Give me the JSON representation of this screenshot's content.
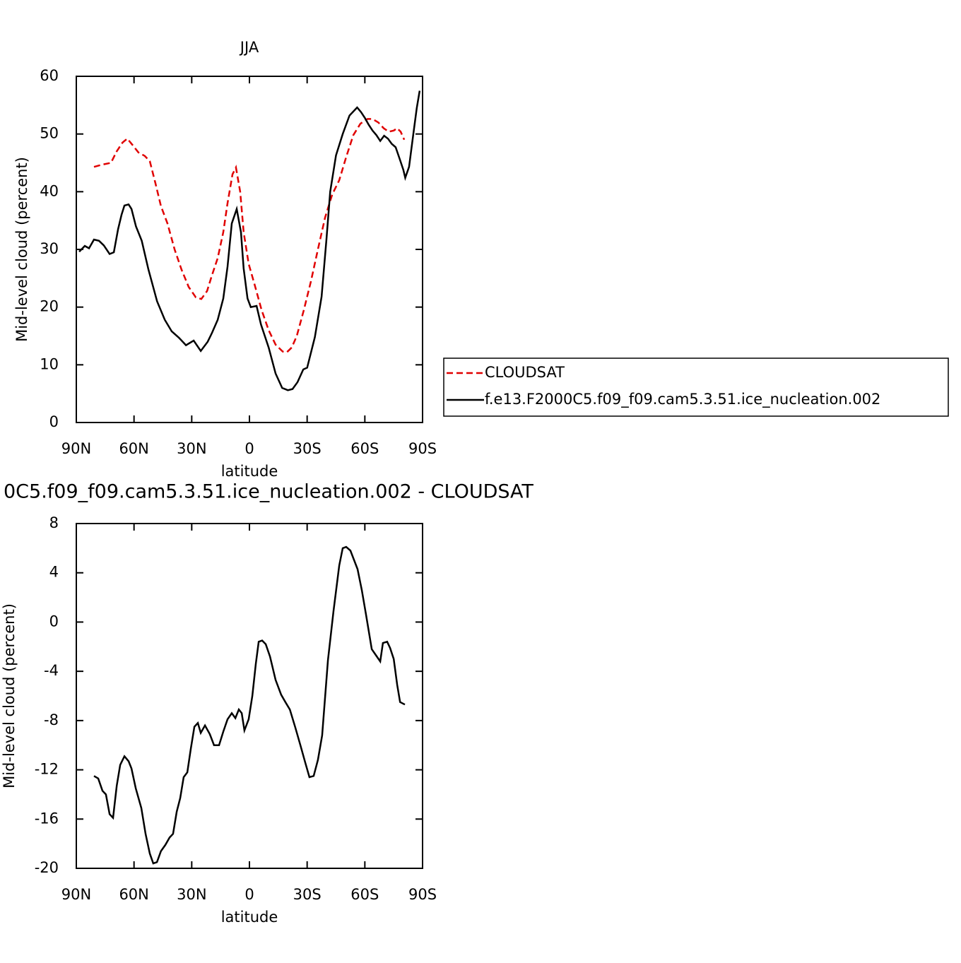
{
  "chart_data": [
    {
      "type": "line",
      "title": "JJA",
      "xlabel": "latitude",
      "ylabel": "Mid-level cloud (percent)",
      "xlim": [
        90,
        -90
      ],
      "xticks": [
        {
          "value": 90,
          "label": "90N"
        },
        {
          "value": 60,
          "label": "60N"
        },
        {
          "value": 30,
          "label": "30N"
        },
        0,
        {
          "value": -30,
          "label": "30S"
        },
        {
          "value": -60,
          "label": "60S"
        },
        {
          "value": -90,
          "label": "90S"
        }
      ],
      "ylim": [
        0,
        60
      ],
      "yticks": [
        0,
        10,
        20,
        30,
        40,
        50,
        60
      ],
      "legend": "right",
      "series": [
        {
          "name": "CLOUDSAT",
          "color": "#e00000",
          "line_style": "dashed",
          "x": [
            80.8,
            76.4,
            72,
            69,
            66,
            63.5,
            61,
            57.7,
            54.4,
            51.8,
            48.9,
            46,
            42.6,
            38.9,
            35.3,
            31.6,
            27.9,
            25,
            22,
            19.5,
            16.5,
            13.6,
            11.4,
            8.8,
            7,
            4.8,
            3,
            0.4,
            -2.6,
            -6.3,
            -10,
            -13.6,
            -17.3,
            -19.5,
            -22,
            -24.6,
            -28.3,
            -32,
            -35.6,
            -39.3,
            -43,
            -46.7,
            -50.3,
            -54,
            -57.7,
            -61.4,
            -64,
            -67,
            -69.8,
            -72.4,
            -75,
            -76.8,
            -78.6,
            -80.5
          ],
          "values": [
            44.3,
            44.7,
            45,
            47,
            48.5,
            49.2,
            48.2,
            46.8,
            46.2,
            45.3,
            41.5,
            37.5,
            34.5,
            30,
            26.5,
            23.5,
            21.7,
            21.4,
            22.8,
            25.5,
            28.5,
            33,
            38,
            43,
            44.2,
            40,
            33,
            27.5,
            24,
            19.5,
            16,
            13.5,
            12.3,
            12.2,
            13,
            15,
            19.5,
            24.5,
            30,
            35.5,
            39.5,
            42,
            46,
            49.8,
            51.8,
            52.6,
            52.6,
            52,
            51,
            50.4,
            50.6,
            51,
            50.4,
            49
          ]
        },
        {
          "name": "f.e13.F2000C5.f09_f09.cam5.3.51.ice_nucleation.002",
          "color": "#000000",
          "line_style": "solid",
          "x": [
            88.5,
            85.6,
            83.4,
            80.8,
            78.2,
            75.7,
            72.7,
            70.5,
            68.3,
            66.5,
            65,
            62.8,
            61.3,
            59,
            56,
            52.5,
            48,
            44,
            40.4,
            36.7,
            33,
            29,
            25.3,
            21.7,
            19.5,
            16.5,
            13.6,
            11.4,
            9.2,
            6.6,
            4.4,
            3,
            1,
            -0.7,
            -3.7,
            -6,
            -10,
            -13.6,
            -17,
            -20,
            -22.4,
            -25,
            -28,
            -30,
            -34,
            -37.5,
            -40,
            -42,
            -45,
            -48.5,
            -52,
            -56,
            -58,
            -60,
            -62,
            -64,
            -66,
            -68,
            -70,
            -72,
            -74,
            -76,
            -78,
            -80,
            -81,
            -83,
            -85,
            -87,
            -88.5
          ],
          "values": [
            29.6,
            30.6,
            30.2,
            31.7,
            31.5,
            30.7,
            29.2,
            29.5,
            33.5,
            36,
            37.6,
            37.8,
            37,
            34,
            31.5,
            26.5,
            21,
            17.8,
            15.8,
            14.7,
            13.4,
            14.2,
            12.4,
            14,
            15.5,
            17.8,
            21.5,
            27,
            34.5,
            37,
            33,
            26.7,
            21.5,
            20,
            20.2,
            17,
            13,
            8.5,
            6,
            5.6,
            5.8,
            7,
            9.2,
            9.5,
            14.8,
            21.8,
            31.6,
            40,
            46.3,
            50,
            53.2,
            54.6,
            53.8,
            52.8,
            51.6,
            50.6,
            49.8,
            48.8,
            49.7,
            49.2,
            48.3,
            47.7,
            45.8,
            43.8,
            42.4,
            44.3,
            49.5,
            54.5,
            57.5
          ]
        }
      ]
    },
    {
      "type": "line",
      "title": "0C5.f09_f09.cam5.3.51.ice_nucleation.002 - CLOUDSAT",
      "xlabel": "latitude",
      "ylabel": "Mid-level cloud (percent)",
      "xlim": [
        90,
        -90
      ],
      "xticks": [
        {
          "value": 90,
          "label": "90N"
        },
        {
          "value": 60,
          "label": "60N"
        },
        {
          "value": 30,
          "label": "30N"
        },
        0,
        {
          "value": -30,
          "label": "30S"
        },
        {
          "value": -60,
          "label": "60S"
        },
        {
          "value": -90,
          "label": "90S"
        }
      ],
      "ylim": [
        -20,
        8
      ],
      "yticks": [
        -20,
        -16,
        -12,
        -8,
        -4,
        0,
        4,
        8
      ],
      "series": [
        {
          "color": "#000000",
          "line_style": "solid",
          "x": [
            80.8,
            78.6,
            76.4,
            74.6,
            72.7,
            70.9,
            69,
            67.2,
            65,
            62.8,
            61.3,
            59.1,
            56.2,
            54,
            51.8,
            50,
            48.1,
            46,
            43.7,
            41.5,
            39.7,
            37.8,
            36,
            34.2,
            32.3,
            30.5,
            28.6,
            26.8,
            25.3,
            23.1,
            20.6,
            18.4,
            15.8,
            13.6,
            11.4,
            9.2,
            7.3,
            5.5,
            4,
            2.6,
            0.4,
            -1.5,
            -3.3,
            -4.8,
            -6.6,
            -8.5,
            -10.7,
            -13.6,
            -16.5,
            -18.7,
            -21,
            -23.9,
            -26.5,
            -29,
            -31.2,
            -33.4,
            -35.6,
            -37.8,
            -40.8,
            -43.7,
            -46.7,
            -48.5,
            -50.3,
            -52.5,
            -56.2,
            -58.4,
            -60.6,
            -63.6,
            -65.8,
            -68,
            -69.4,
            -71.6,
            -73.1,
            -75,
            -76.8,
            -78.3,
            -80.8
          ],
          "values": [
            -12.5,
            -12.7,
            -13.7,
            -14,
            -15.6,
            -15.9,
            -13.3,
            -11.6,
            -10.9,
            -11.3,
            -11.9,
            -13.5,
            -15.1,
            -17.2,
            -18.8,
            -19.6,
            -19.5,
            -18.6,
            -18.1,
            -17.5,
            -17.2,
            -15.4,
            -14.3,
            -12.6,
            -12.2,
            -10.3,
            -8.5,
            -8.2,
            -9,
            -8.4,
            -9.1,
            -10,
            -10,
            -8.9,
            -7.9,
            -7.4,
            -7.8,
            -7.1,
            -7.4,
            -8.8,
            -7.9,
            -6,
            -3.4,
            -1.6,
            -1.5,
            -1.8,
            -2.8,
            -4.7,
            -5.9,
            -6.5,
            -7.1,
            -8.6,
            -10,
            -11.4,
            -12.6,
            -12.5,
            -11.2,
            -9.2,
            -3.1,
            0.9,
            4.6,
            6,
            6.1,
            5.8,
            4.3,
            2.6,
            0.6,
            -2.2,
            -2.7,
            -3.2,
            -1.7,
            -1.6,
            -2.1,
            -3,
            -5.1,
            -6.5,
            -6.7
          ]
        }
      ]
    }
  ]
}
